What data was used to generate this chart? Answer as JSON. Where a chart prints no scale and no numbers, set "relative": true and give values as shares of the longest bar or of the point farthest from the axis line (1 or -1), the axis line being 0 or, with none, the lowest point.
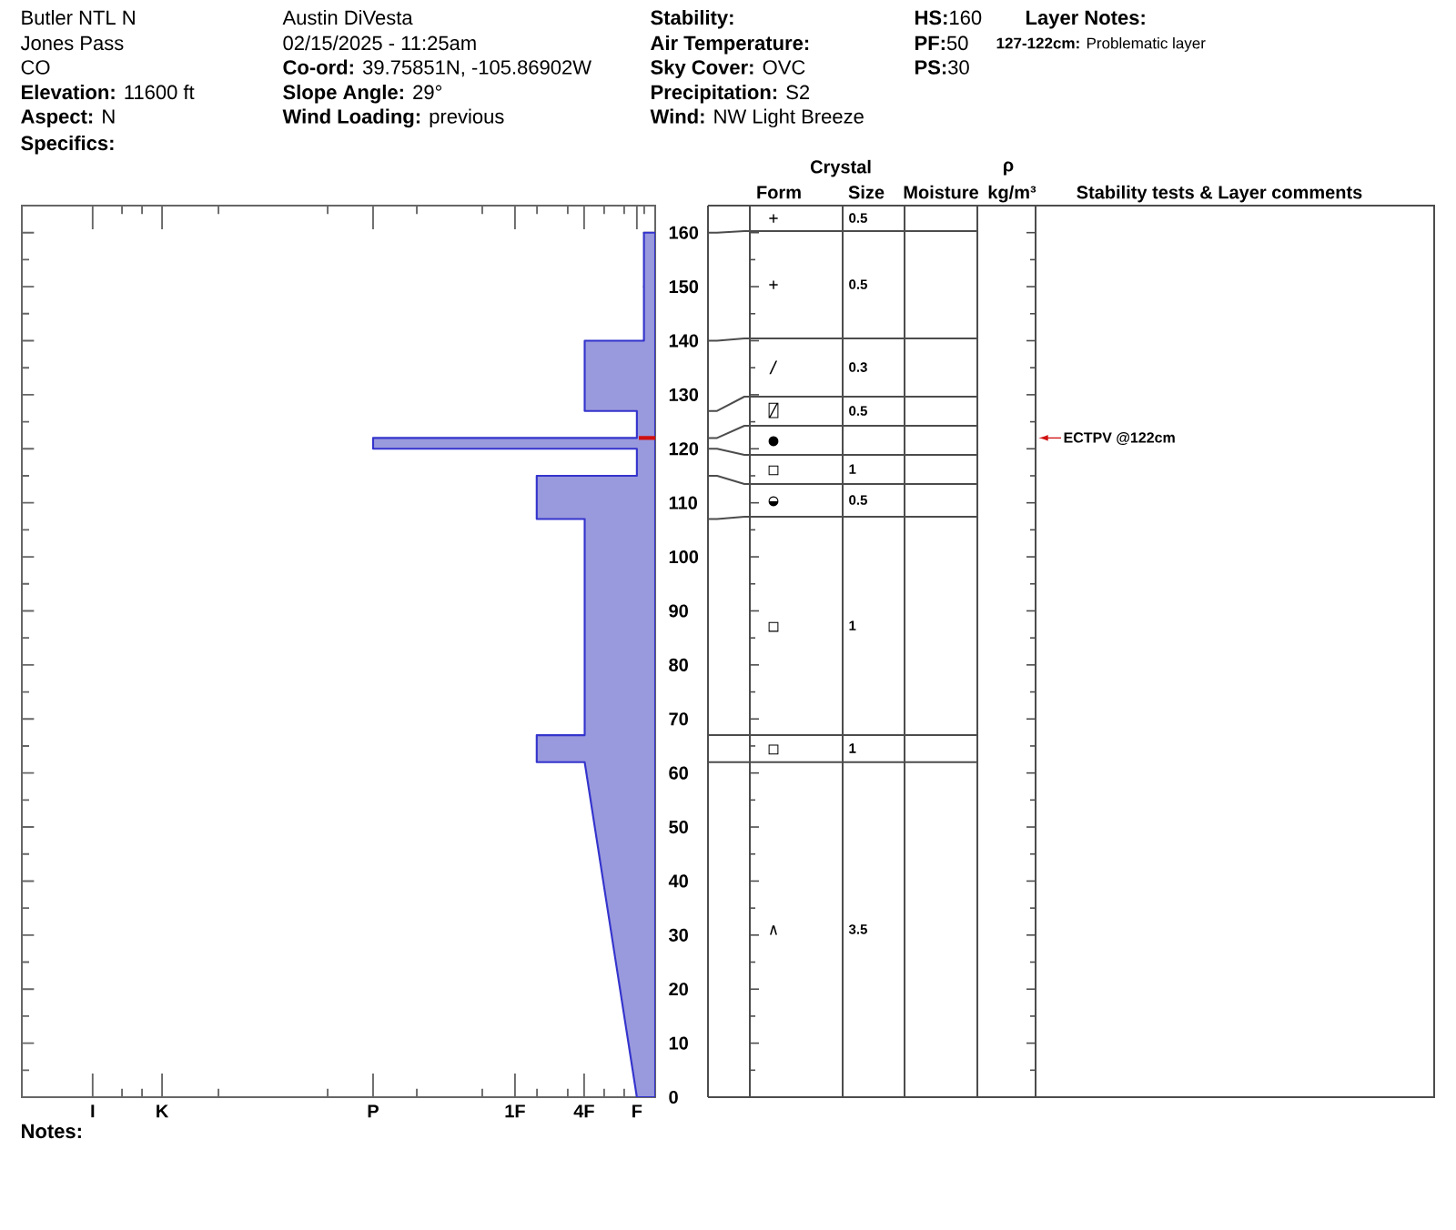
{
  "chart_data": [
    {
      "type": "area",
      "orientation": "horizontal",
      "relative": true,
      "color": "#9999dd",
      "x": [
        0,
        62,
        62,
        67,
        67,
        107,
        107,
        115,
        115,
        120,
        120,
        122,
        122,
        127,
        127,
        140,
        140,
        160
      ],
      "values": [
        -0.065,
        -0.25,
        -0.42,
        -0.42,
        -0.25,
        -0.25,
        -0.42,
        -0.42,
        -0.065,
        -0.065,
        -1,
        -1,
        -0.065,
        -0.065,
        -0.25,
        -0.25,
        -0.04,
        -0.04
      ],
      "ylim": [
        0,
        165
      ],
      "yticks": [
        0,
        {
          "value": 5,
          "label": null
        },
        10,
        {
          "value": 15,
          "label": null
        },
        20,
        {
          "value": 25,
          "label": null
        },
        30,
        {
          "value": 35,
          "label": null
        },
        40,
        {
          "value": 45,
          "label": null
        },
        50,
        {
          "value": 55,
          "label": null
        },
        60,
        {
          "value": 65,
          "label": null
        },
        70,
        {
          "value": 75,
          "label": null
        },
        80,
        {
          "value": 85,
          "label": null
        },
        90,
        {
          "value": 95,
          "label": null
        },
        100,
        {
          "value": 105,
          "label": null
        },
        110,
        {
          "value": 115,
          "label": null
        },
        120,
        {
          "value": 125,
          "label": null
        },
        130,
        {
          "value": 135,
          "label": null
        },
        140,
        {
          "value": 145,
          "label": null
        },
        150,
        {
          "value": 155,
          "label": null
        },
        160
      ],
      "annotations": [
        "I",
        "K",
        "P",
        "1F",
        "4F",
        "F"
      ],
      "ref_lines": [
        {
          "axis": "y",
          "value": 122,
          "label": "ECTPV @122cm",
          "color": "#d01010"
        }
      ]
    },
    {
      "type": "other",
      "annotations": [
        "Butler NTL N",
        "Jones Pass",
        "CO",
        "**Elevation:** 11600 ft",
        "**Aspect:** N",
        "Specifics:",
        "Austin DiVesta",
        "02/15/2025 - 11:25am",
        "**Co-ord:** 39.75851N, -105.86902W",
        "**Slope Angle:** 29°",
        "**Wind Loading:** previous",
        "Stability:",
        "Air Temperature:",
        "**Sky Cover:** OVC",
        "**Precipitation:** S2",
        "**Wind:** NW Light Breeze",
        "**HS:**160",
        "**PF:**50",
        "**PS:**30",
        "Layer Notes:",
        "**127-122cm:** Problematic layer",
        "Notes:",
        "Crystal",
        "Form",
        "Size",
        "Moisture",
        "ρ",
        "kg/m³",
        "Stability tests & Layer comments",
        "+",
        "0.5",
        "+",
        "0.5",
        "/",
        "0.3",
        "⍁",
        "0.5",
        "●",
        "□",
        "1",
        "◒",
        "0.5",
        "□",
        "1",
        "□",
        "1",
        "∧",
        "3.5"
      ]
    }
  ]
}
